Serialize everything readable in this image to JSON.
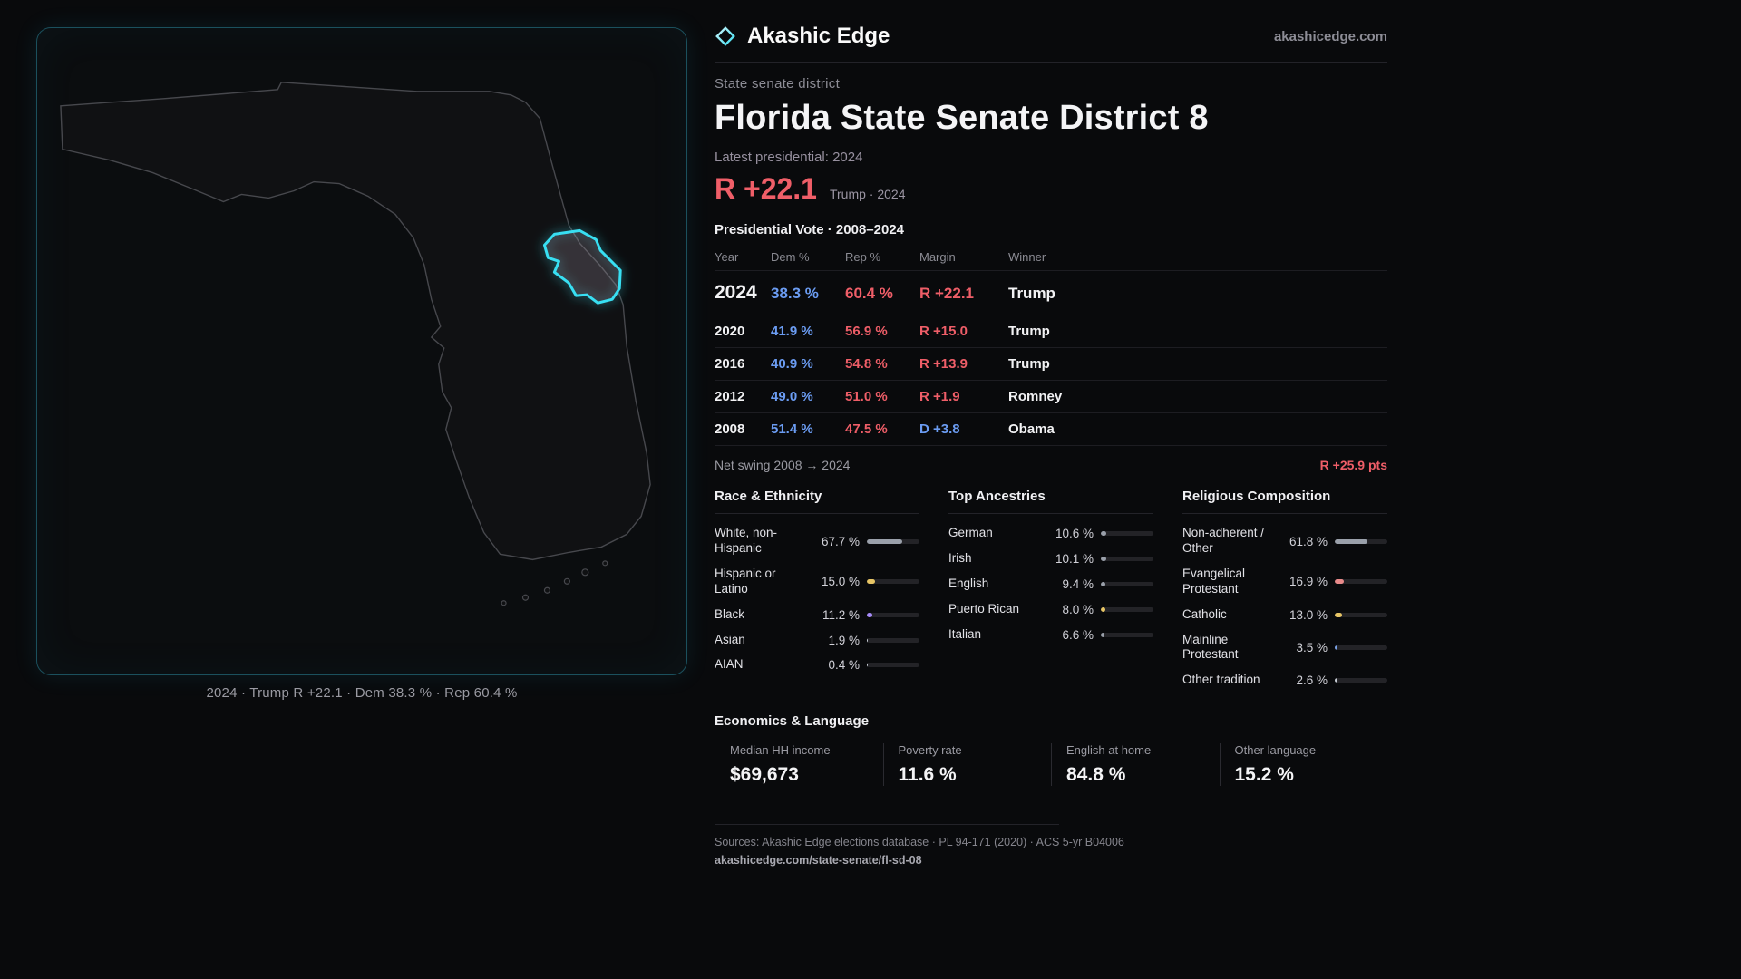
{
  "colors": {
    "dem": "#6b9cf2",
    "rep": "#ef5e68",
    "accent": "#38dff2"
  },
  "header": {
    "brand": "Akashic Edge",
    "site": "akashicedge.com",
    "logo_icon": "diamond"
  },
  "hero": {
    "kicker": "State senate district",
    "title": "Florida State Senate District 8",
    "latest_label": "Latest presidential: 2024",
    "headline_margin": "R +22.1",
    "headline_margin_color": "#ef5e68",
    "headline_note": "Trump · 2024"
  },
  "map": {
    "caption": "2024 · Trump R +22.1 · Dem 38.3 % · Rep 60.4 %",
    "region": "Florida",
    "district": "District 8"
  },
  "vote_table": {
    "title": "Presidential Vote · 2008–2024",
    "columns": [
      "Year",
      "Dem %",
      "Rep %",
      "Margin",
      "Winner"
    ],
    "rows": [
      {
        "year": "2024",
        "dem": "38.3 %",
        "rep": "60.4 %",
        "margin": "R +22.1",
        "margin_color": "#ef5e68",
        "winner": "Trump"
      },
      {
        "year": "2020",
        "dem": "41.9 %",
        "rep": "56.9 %",
        "margin": "R +15.0",
        "margin_color": "#ef5e68",
        "winner": "Trump"
      },
      {
        "year": "2016",
        "dem": "40.9 %",
        "rep": "54.8 %",
        "margin": "R +13.9",
        "margin_color": "#ef5e68",
        "winner": "Trump"
      },
      {
        "year": "2012",
        "dem": "49.0 %",
        "rep": "51.0 %",
        "margin": "R +1.9",
        "margin_color": "#ef5e68",
        "winner": "Romney"
      },
      {
        "year": "2008",
        "dem": "51.4 %",
        "rep": "47.5 %",
        "margin": "D +3.8",
        "margin_color": "#6b9cf2",
        "winner": "Obama"
      }
    ]
  },
  "swing": {
    "label": "Net swing 2008 → 2024",
    "value": "R +25.9 pts",
    "value_color": "#ef5e68"
  },
  "race": {
    "title": "Race & Ethnicity",
    "rows": [
      {
        "label": "White, non-Hispanic",
        "value": "67.7 %",
        "pct": 67.7,
        "color": "#9aa0aa"
      },
      {
        "label": "Hispanic or Latino",
        "value": "15.0 %",
        "pct": 15.0,
        "color": "#e7c565"
      },
      {
        "label": "Black",
        "value": "11.2 %",
        "pct": 11.2,
        "color": "#a78bfa"
      },
      {
        "label": "Asian",
        "value": "1.9 %",
        "pct": 1.9,
        "color": "#c9ced6"
      },
      {
        "label": "AIAN",
        "value": "0.4 %",
        "pct": 0.4,
        "color": "#c9ced6"
      }
    ]
  },
  "ancestries": {
    "title": "Top Ancestries",
    "rows": [
      {
        "label": "German",
        "value": "10.6 %",
        "pct": 10.6,
        "color": "#9aa0aa"
      },
      {
        "label": "Irish",
        "value": "10.1 %",
        "pct": 10.1,
        "color": "#9aa0aa"
      },
      {
        "label": "English",
        "value": "9.4 %",
        "pct": 9.4,
        "color": "#9aa0aa"
      },
      {
        "label": "Puerto Rican",
        "value": "8.0 %",
        "pct": 8.0,
        "color": "#e7c565"
      },
      {
        "label": "Italian",
        "value": "6.6 %",
        "pct": 6.6,
        "color": "#9aa0aa"
      }
    ]
  },
  "religion": {
    "title": "Religious Composition",
    "rows": [
      {
        "label": "Non-adherent / Other",
        "value": "61.8 %",
        "pct": 61.8,
        "color": "#9aa0aa"
      },
      {
        "label": "Evangelical Protestant",
        "value": "16.9 %",
        "pct": 16.9,
        "color": "#e88a8a"
      },
      {
        "label": "Catholic",
        "value": "13.0 %",
        "pct": 13.0,
        "color": "#e7c565"
      },
      {
        "label": "Mainline Protestant",
        "value": "3.5 %",
        "pct": 3.5,
        "color": "#7ba3e8"
      },
      {
        "label": "Other tradition",
        "value": "2.6 %",
        "pct": 2.6,
        "color": "#c9ced6"
      }
    ]
  },
  "economics": {
    "title": "Economics & Language",
    "stats": [
      {
        "label": "Median HH income",
        "value": "$69,673"
      },
      {
        "label": "Poverty rate",
        "value": "11.6 %"
      },
      {
        "label": "English at home",
        "value": "84.8 %"
      },
      {
        "label": "Other language",
        "value": "15.2 %"
      }
    ]
  },
  "footer": {
    "sources": "Sources: Akashic Edge elections database · PL 94-171 (2020) · ACS 5-yr B04006",
    "permalink": "akashicedge.com/state-senate/fl-sd-08"
  }
}
